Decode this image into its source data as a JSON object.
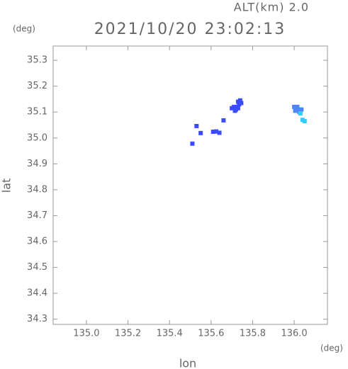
{
  "chart_data": {
    "type": "scatter",
    "subtitle": "ALT(km) 2.0",
    "title": "2021/10/20 23:02:13",
    "y_unit": "(deg)",
    "x_unit": "(deg)",
    "xlabel": "lon",
    "ylabel": "lat",
    "xlim": [
      134.84,
      136.16
    ],
    "ylim": [
      34.28,
      35.355
    ],
    "xticks": [
      {
        "value": 135,
        "label": "135.0"
      },
      {
        "value": 135.2,
        "label": "135.2"
      },
      {
        "value": 135.4,
        "label": "135.4"
      },
      {
        "value": 135.6,
        "label": "135.6"
      },
      {
        "value": 135.8,
        "label": "135.8"
      },
      {
        "value": 136,
        "label": "136.0"
      }
    ],
    "yticks": [
      34.3,
      34.4,
      34.5,
      34.6,
      34.7,
      34.8,
      34.9,
      {
        "value": 35,
        "label": "35.0"
      },
      35.1,
      35.2,
      35.3
    ],
    "series": [
      {
        "color": "#3b4cff",
        "x": [
          135.73,
          135.74,
          135.735,
          135.725,
          135.73,
          135.71,
          135.7,
          135.72,
          135.745,
          135.715,
          135.53,
          135.55,
          135.51,
          135.61,
          135.625,
          135.66,
          135.64
        ],
        "y": [
          35.14,
          35.145,
          35.13,
          35.12,
          35.115,
          35.12,
          35.115,
          35.11,
          35.135,
          35.105,
          35.046,
          35.019,
          34.978,
          35.024,
          35.025,
          35.068,
          35.02
        ]
      },
      {
        "color": "#4f86f7",
        "x": [
          136.0,
          136.01,
          136.02,
          136.03,
          136.015,
          136.005,
          136.025,
          136.035
        ],
        "y": [
          35.12,
          35.115,
          35.11,
          35.105,
          35.12,
          35.105,
          35.1,
          35.11
        ]
      },
      {
        "color": "#33ccff",
        "x": [
          136.04,
          136.05,
          136.03
        ],
        "y": [
          35.07,
          35.065,
          35.095
        ]
      }
    ]
  }
}
